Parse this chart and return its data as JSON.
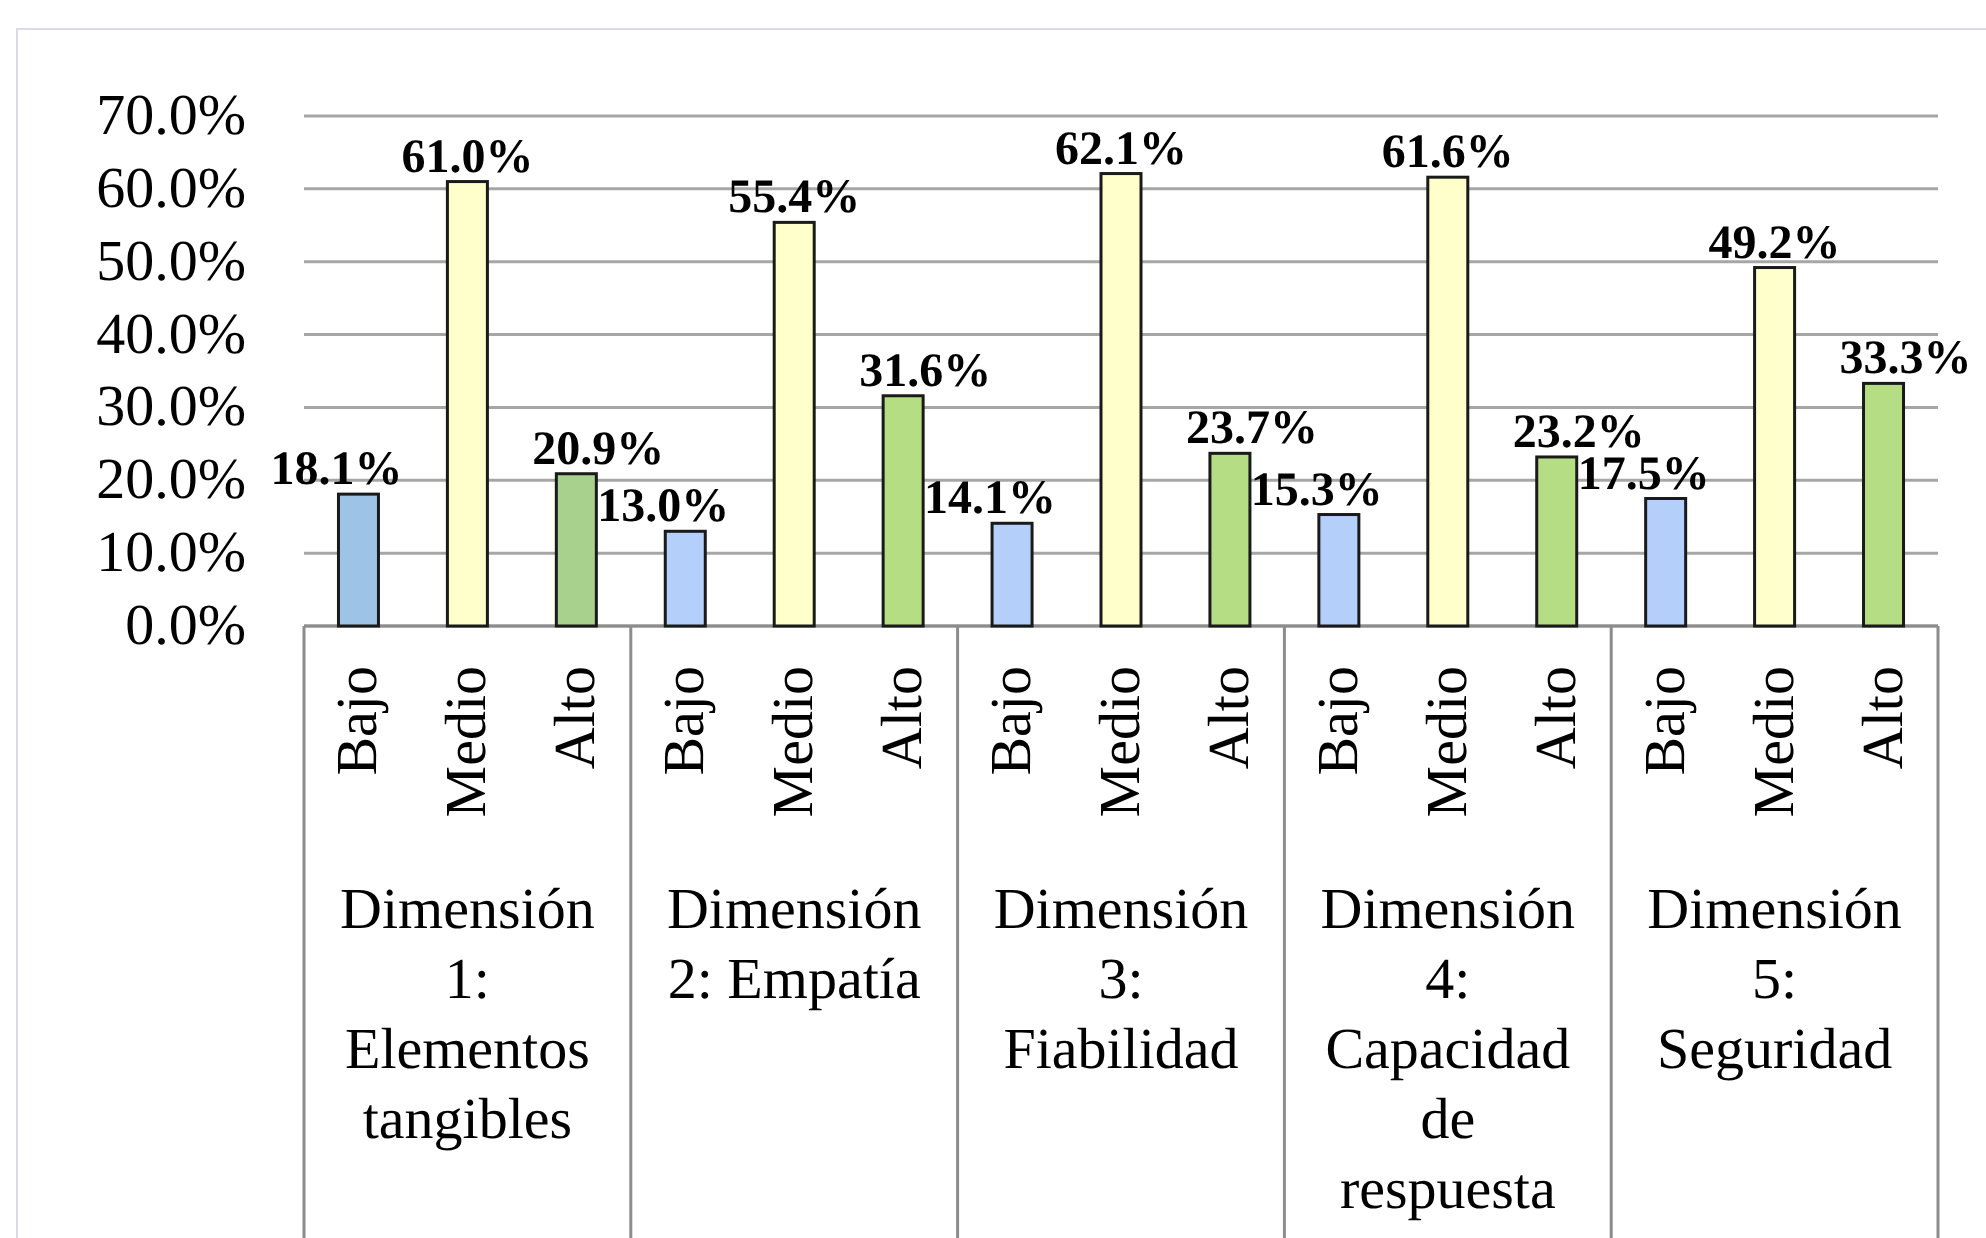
{
  "chart_data": {
    "type": "bar",
    "categories": [
      "Dimensión 1: Elementos tangibles",
      "Dimensión 2: Empatía",
      "Dimensión 3: Fiabilidad",
      "Dimensión 4: Capacidad de respuesta",
      "Dimensión 5: Seguridad"
    ],
    "series": [
      {
        "name": "Bajo",
        "colors": [
          "#9dc3e6",
          "#b4cffa",
          "#b4cffa",
          "#b4cffa",
          "#b4cffa"
        ],
        "values": [
          18.1,
          13.0,
          14.1,
          15.3,
          17.5
        ],
        "value_labels": [
          "18.1%",
          "13.0%",
          "14.1%",
          "15.3%",
          "17.5%"
        ]
      },
      {
        "name": "Medio",
        "color": "#ffffcc",
        "values": [
          61.0,
          55.4,
          62.1,
          61.6,
          49.2
        ],
        "value_labels": [
          "61.0%",
          "55.4%",
          "62.1%",
          "61.6%",
          "49.2%"
        ]
      },
      {
        "name": "Alto",
        "colors": [
          "#a9d18e",
          "#b5de84",
          "#b5de84",
          "#b5de84",
          "#b5de84"
        ],
        "values": [
          20.9,
          31.6,
          23.7,
          23.2,
          33.3
        ],
        "value_labels": [
          "20.9%",
          "31.6%",
          "23.7%",
          "23.2%",
          "33.3%"
        ]
      }
    ],
    "ylim": [
      0,
      70
    ],
    "yticks": [
      {
        "value": 0,
        "label": "0.0%"
      },
      {
        "value": 10,
        "label": "10.0%"
      },
      {
        "value": 20,
        "label": "20.0%"
      },
      {
        "value": 30,
        "label": "30.0%"
      },
      {
        "value": 40,
        "label": "40.0%"
      },
      {
        "value": 50,
        "label": "50.0%"
      },
      {
        "value": 60,
        "label": "60.0%"
      },
      {
        "value": 70,
        "label": "70.0%"
      }
    ],
    "grid": "y"
  }
}
